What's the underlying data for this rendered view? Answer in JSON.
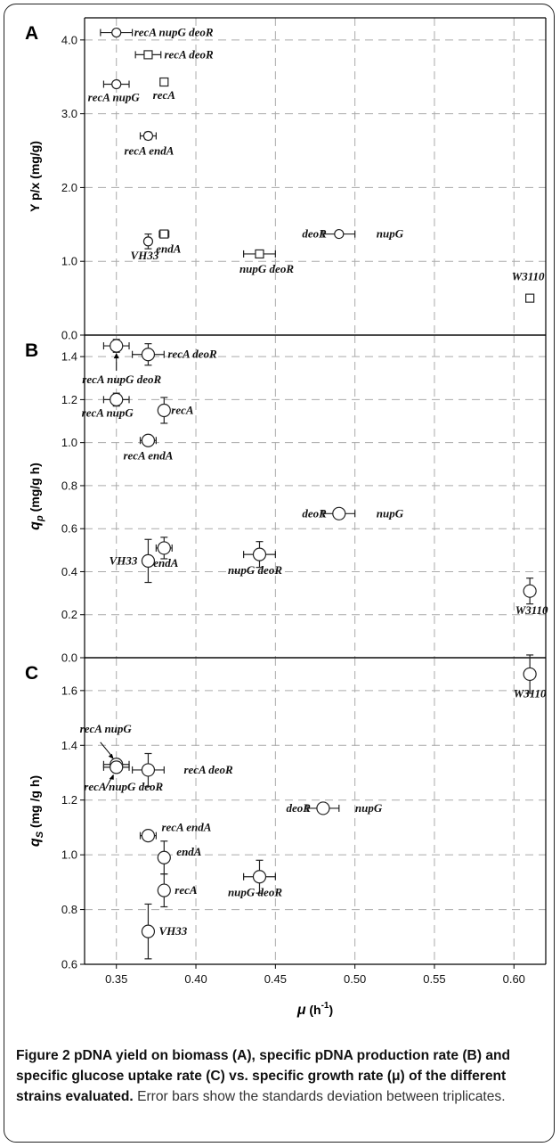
{
  "chart_data": [
    {
      "type": "scatter",
      "panel_label": "A",
      "ylabel": "Y p/x (mg/g)",
      "ylim": [
        0,
        4.3
      ],
      "yticks": [
        "0.0",
        "1.0",
        "2.0",
        "3.0",
        "4.0"
      ],
      "ytick_values": [
        0,
        1,
        2,
        3,
        4
      ],
      "grid": true,
      "points": [
        {
          "label": "recA nupG deoR",
          "x": 0.35,
          "y": 4.1,
          "xerr": 0.01,
          "yerr": 0.03,
          "marker": "circle"
        },
        {
          "label": "recA deoR",
          "x": 0.37,
          "y": 3.8,
          "xerr": 0.008,
          "yerr": 0.05,
          "marker": "square"
        },
        {
          "label": "recA nupG",
          "x": 0.35,
          "y": 3.4,
          "xerr": 0.008,
          "yerr": 0.04,
          "marker": "circle"
        },
        {
          "label": "recA",
          "x": 0.38,
          "y": 3.43,
          "xerr": 0.002,
          "yerr": 0.05,
          "marker": "square"
        },
        {
          "label": "recA endA",
          "x": 0.37,
          "y": 2.7,
          "xerr": 0.005,
          "yerr": 0.05,
          "marker": "circle"
        },
        {
          "label": "VH33",
          "x": 0.37,
          "y": 1.27,
          "xerr": 0.0,
          "yerr": 0.1,
          "marker": "circle"
        },
        {
          "label": "endA",
          "x": 0.38,
          "y": 1.37,
          "xerr": 0.003,
          "yerr": 0.05,
          "marker": "square"
        },
        {
          "label": "nupG deoR",
          "x": 0.44,
          "y": 1.1,
          "xerr": 0.01,
          "yerr": 0.05,
          "marker": "square"
        },
        {
          "label": "deoR",
          "x": 0.49,
          "y": 1.37,
          "xerr": 0.01,
          "yerr": 0.04,
          "marker": "circle"
        },
        {
          "label": "nupG",
          "x": 0.49,
          "y": 1.37,
          "xerr": 0.0,
          "yerr": 0.0,
          "marker": "none"
        },
        {
          "label": "W3110",
          "x": 0.61,
          "y": 0.5,
          "xerr": 0.0,
          "yerr": 0.05,
          "marker": "square"
        }
      ]
    },
    {
      "type": "scatter",
      "panel_label": "B",
      "ylabel_main": "q",
      "ylabel_sub": "p",
      "ylabel_rest": " (mg/g h)",
      "ylim": [
        0,
        1.5
      ],
      "yticks": [
        "0.0",
        "0.2",
        "0.4",
        "0.6",
        "0.8",
        "1.0",
        "1.2",
        "1.4"
      ],
      "ytick_values": [
        0,
        0.2,
        0.4,
        0.6,
        0.8,
        1.0,
        1.2,
        1.4
      ],
      "grid": true,
      "points": [
        {
          "label": "recA nupG deoR",
          "x": 0.35,
          "y": 1.45,
          "xerr": 0.008,
          "yerr": 0.03,
          "marker": "circle"
        },
        {
          "label": "recA deoR",
          "x": 0.37,
          "y": 1.41,
          "xerr": 0.01,
          "yerr": 0.05,
          "marker": "circle"
        },
        {
          "label": "recA nupG",
          "x": 0.35,
          "y": 1.2,
          "xerr": 0.008,
          "yerr": 0.03,
          "marker": "circle"
        },
        {
          "label": "recA",
          "x": 0.38,
          "y": 1.15,
          "xerr": 0.0,
          "yerr": 0.06,
          "marker": "circle"
        },
        {
          "label": "recA endA",
          "x": 0.37,
          "y": 1.01,
          "xerr": 0.005,
          "yerr": 0.01,
          "marker": "circle"
        },
        {
          "label": "VH33",
          "x": 0.37,
          "y": 0.45,
          "xerr": 0.0,
          "yerr": 0.1,
          "marker": "circle"
        },
        {
          "label": "endA",
          "x": 0.38,
          "y": 0.51,
          "xerr": 0.005,
          "yerr": 0.05,
          "marker": "circle"
        },
        {
          "label": "nupG deoR",
          "x": 0.44,
          "y": 0.48,
          "xerr": 0.01,
          "yerr": 0.06,
          "marker": "circle"
        },
        {
          "label": "deoR",
          "x": 0.49,
          "y": 0.67,
          "xerr": 0.01,
          "yerr": 0.02,
          "marker": "circle"
        },
        {
          "label": "nupG",
          "x": 0.49,
          "y": 0.67,
          "xerr": 0.0,
          "yerr": 0.0,
          "marker": "none"
        },
        {
          "label": "W3110",
          "x": 0.61,
          "y": 0.31,
          "xerr": 0.0,
          "yerr": 0.06,
          "marker": "circle"
        }
      ]
    },
    {
      "type": "scatter",
      "panel_label": "C",
      "ylabel_main": "q",
      "ylabel_sub": "S",
      "ylabel_rest": " (mg /g h)",
      "ylim": [
        0.6,
        1.72
      ],
      "yticks": [
        "0.6",
        "0.8",
        "1.0",
        "1.2",
        "1.4",
        "1.6"
      ],
      "ytick_values": [
        0.6,
        0.8,
        1.0,
        1.2,
        1.4,
        1.6
      ],
      "xlabel_main": "μ",
      "xlabel_rest": " (h",
      "xlabel_sup": "-1",
      "xlabel_end": ")",
      "xlim": [
        0.33,
        0.62
      ],
      "xticks": [
        "0.35",
        "0.40",
        "0.45",
        "0.50",
        "0.55",
        "0.60"
      ],
      "xtick_values": [
        0.35,
        0.4,
        0.45,
        0.5,
        0.55,
        0.6
      ],
      "grid": true,
      "points": [
        {
          "label": "W3110",
          "x": 0.61,
          "y": 1.66,
          "xerr": 0.0,
          "yerr": 0.07,
          "marker": "circle"
        },
        {
          "label": "recA nupG",
          "x": 0.35,
          "y": 1.33,
          "xerr": 0.008,
          "yerr": 0.02,
          "marker": "circle"
        },
        {
          "label": "recA nupG deoR",
          "x": 0.35,
          "y": 1.32,
          "xerr": 0.008,
          "yerr": 0.02,
          "marker": "circle"
        },
        {
          "label": "recA deoR",
          "x": 0.37,
          "y": 1.31,
          "xerr": 0.01,
          "yerr": 0.06,
          "marker": "circle"
        },
        {
          "label": "deoR",
          "x": 0.48,
          "y": 1.17,
          "xerr": 0.01,
          "yerr": 0.01,
          "marker": "circle"
        },
        {
          "label": "nupG",
          "x": 0.48,
          "y": 1.17,
          "xerr": 0.0,
          "yerr": 0.0,
          "marker": "none"
        },
        {
          "label": "recA endA",
          "x": 0.37,
          "y": 1.07,
          "xerr": 0.005,
          "yerr": 0.01,
          "marker": "circle"
        },
        {
          "label": "endA",
          "x": 0.38,
          "y": 0.99,
          "xerr": 0.0,
          "yerr": 0.06,
          "marker": "circle"
        },
        {
          "label": "nupG deoR",
          "x": 0.44,
          "y": 0.92,
          "xerr": 0.01,
          "yerr": 0.06,
          "marker": "circle"
        },
        {
          "label": "recA",
          "x": 0.38,
          "y": 0.87,
          "xerr": 0.0,
          "yerr": 0.06,
          "marker": "circle"
        },
        {
          "label": "VH33",
          "x": 0.37,
          "y": 0.72,
          "xerr": 0.0,
          "yerr": 0.1,
          "marker": "circle"
        }
      ]
    }
  ],
  "caption": {
    "bold": "Figure 2 pDNA yield on biomass (A), specific pDNA production rate (B) and specific glucose uptake rate (C) vs. specific growth rate (μ) of the different strains evaluated.",
    "plain": " Error bars show the standards deviation between triplicates."
  }
}
